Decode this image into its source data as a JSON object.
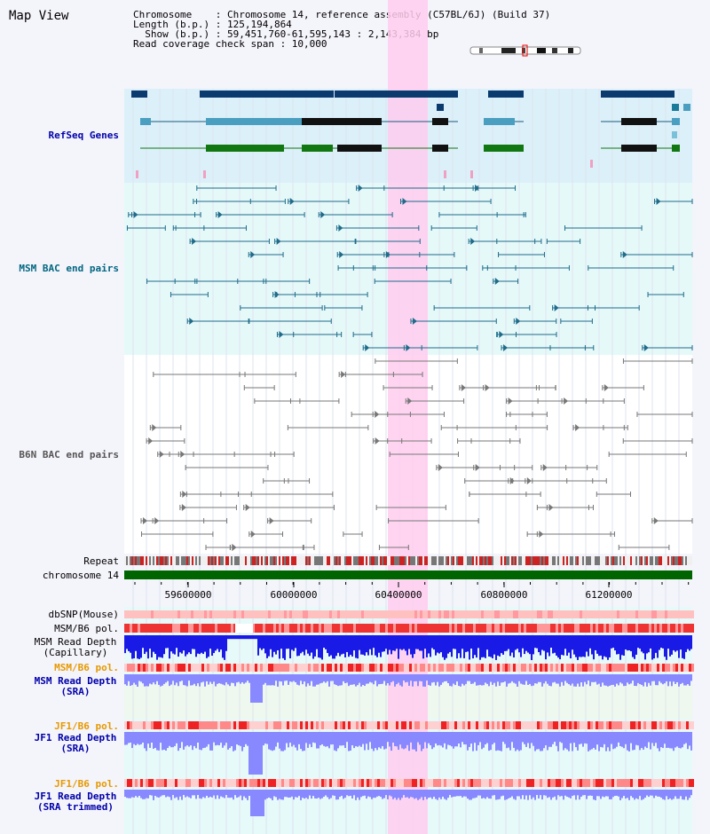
{
  "header": {
    "title": "Map View",
    "chromosome_label": "Chromosome    : Chromosome 14, reference assembly (C57BL/6J) (Build 37)",
    "length_label": "Length (b.p.) : 125,194,864",
    "show_label": "  Show (b.p.) : 59,451,760-61,595,143 : 2,143,384 bp",
    "coverage_label": "Read coverage check span : 10,000"
  },
  "tracks": {
    "refseq": "RefSeq Genes",
    "msm_bac": "MSM BAC end pairs",
    "b6n_bac": "B6N BAC end pairs",
    "repeat": "Repeat",
    "chromosome": "chromosome 14",
    "dbsnp": "dbSNP(Mouse)",
    "msm_b6_pol_1": "MSM/B6 pol.",
    "msm_read_depth_cap": "MSM Read Depth\n(Capillary)",
    "msm_b6_pol_2": "MSM/B6 pol.",
    "msm_read_depth_sra": "MSM Read Depth\n(SRA)",
    "jf1_b6_pol_1": "JF1/B6 pol.",
    "jf1_read_depth_sra": "JF1 Read Depth\n(SRA)",
    "jf1_b6_pol_2": "JF1/B6 pol.",
    "jf1_read_depth_trim": "JF1 Read Depth\n(SRA trimmed)"
  },
  "axis": {
    "ticks": [
      "59600000",
      "60000000",
      "60400000",
      "60800000",
      "61200000"
    ]
  },
  "colors": {
    "refseq_label": "#0000aa",
    "msm_label": "#006680",
    "b6n_label": "#555555",
    "pol_label": "#e69900",
    "depth_label": "#0000aa",
    "highlight": "#ffccee",
    "chromosome_bar": "#006400"
  }
}
